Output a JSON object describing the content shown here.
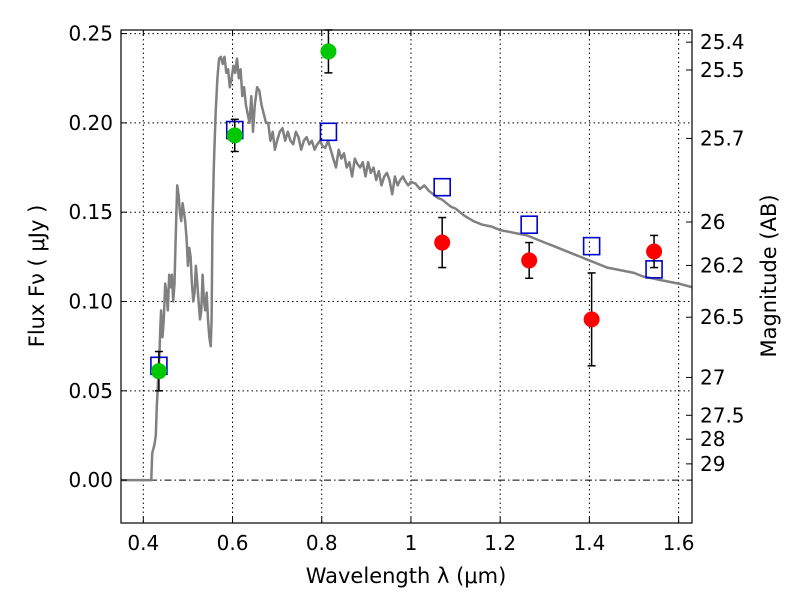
{
  "chart_data": {
    "type": "scatter",
    "title": "",
    "xlabel": "Wavelength  λ (μm)",
    "ylabel": "Flux  Fν  ( μJy )",
    "y2label": "Magnitude (AB)",
    "xlim": [
      0.35,
      1.63
    ],
    "ylim": [
      -0.024,
      0.252
    ],
    "x_ticks": [
      0.4,
      0.6,
      0.8,
      1.0,
      1.2,
      1.4,
      1.6
    ],
    "x_tick_labels": [
      "0.4",
      "0.6",
      "0.8",
      "1",
      "1.2",
      "1.4",
      "1.6"
    ],
    "y_ticks": [
      0.0,
      0.05,
      0.1,
      0.15,
      0.2,
      0.25
    ],
    "y_tick_labels": [
      "0.00",
      "0.05",
      "0.10",
      "0.15",
      "0.20",
      "0.25"
    ],
    "y2_ticks": [
      {
        "flux": 0.2452,
        "label": "25.4"
      },
      {
        "flux": 0.2296,
        "label": "25.5"
      },
      {
        "flux": 0.1913,
        "label": "25.7"
      },
      {
        "flux": 0.1445,
        "label": "26"
      },
      {
        "flux": 0.1202,
        "label": "26.2"
      },
      {
        "flux": 0.0912,
        "label": "26.5"
      },
      {
        "flux": 0.0575,
        "label": "27"
      },
      {
        "flux": 0.0363,
        "label": "27.5"
      },
      {
        "flux": 0.0229,
        "label": "28"
      },
      {
        "flux": 0.0091,
        "label": "29"
      }
    ],
    "grid": true,
    "colors": {
      "model_line": "#808080",
      "model_square": "#0000cc",
      "green_points": "#00c800",
      "red_points": "#ff0000",
      "errorbar": "#000000"
    },
    "series": [
      {
        "kind": "line",
        "color": "#808080",
        "x": [
          0.35,
          0.41,
          0.415,
          0.418,
          0.42,
          0.425,
          0.428,
          0.43,
          0.433,
          0.436,
          0.438,
          0.44,
          0.443,
          0.446,
          0.449,
          0.452,
          0.455,
          0.458,
          0.461,
          0.464,
          0.467,
          0.47,
          0.473,
          0.476,
          0.479,
          0.482,
          0.485,
          0.488,
          0.491,
          0.494,
          0.497,
          0.5,
          0.503,
          0.506,
          0.509,
          0.512,
          0.515,
          0.518,
          0.521,
          0.524,
          0.527,
          0.53,
          0.533,
          0.536,
          0.539,
          0.542,
          0.545,
          0.548,
          0.551,
          0.553,
          0.555,
          0.558,
          0.562,
          0.566,
          0.57,
          0.574,
          0.578,
          0.582,
          0.586,
          0.59,
          0.594,
          0.598,
          0.602,
          0.606,
          0.61,
          0.614,
          0.618,
          0.622,
          0.626,
          0.63,
          0.634,
          0.638,
          0.642,
          0.646,
          0.65,
          0.655,
          0.66,
          0.665,
          0.67,
          0.675,
          0.68,
          0.685,
          0.69,
          0.695,
          0.7,
          0.706,
          0.712,
          0.718,
          0.724,
          0.73,
          0.736,
          0.742,
          0.748,
          0.754,
          0.76,
          0.766,
          0.772,
          0.778,
          0.784,
          0.79,
          0.796,
          0.802,
          0.808,
          0.814,
          0.82,
          0.826,
          0.832,
          0.838,
          0.844,
          0.85,
          0.856,
          0.862,
          0.868,
          0.874,
          0.88,
          0.886,
          0.892,
          0.898,
          0.904,
          0.91,
          0.916,
          0.922,
          0.928,
          0.934,
          0.94,
          0.946,
          0.952,
          0.958,
          0.964,
          0.97,
          0.976,
          0.982,
          0.988,
          0.994,
          1.0,
          1.01,
          1.02,
          1.03,
          1.04,
          1.05,
          1.06,
          1.07,
          1.08,
          1.09,
          1.1,
          1.12,
          1.14,
          1.16,
          1.18,
          1.2,
          1.22,
          1.24,
          1.26,
          1.28,
          1.3,
          1.32,
          1.34,
          1.36,
          1.38,
          1.4,
          1.42,
          1.44,
          1.46,
          1.48,
          1.5,
          1.52,
          1.54,
          1.56,
          1.58,
          1.6,
          1.63
        ],
        "y": [
          0.0,
          0.0,
          0.0,
          0.0,
          0.015,
          0.02,
          0.025,
          0.04,
          0.055,
          0.07,
          0.085,
          0.095,
          0.08,
          0.09,
          0.11,
          0.105,
          0.095,
          0.115,
          0.108,
          0.115,
          0.1,
          0.11,
          0.14,
          0.165,
          0.16,
          0.15,
          0.145,
          0.155,
          0.15,
          0.145,
          0.135,
          0.12,
          0.13,
          0.125,
          0.11,
          0.1,
          0.105,
          0.12,
          0.11,
          0.1,
          0.09,
          0.095,
          0.115,
          0.1,
          0.095,
          0.105,
          0.09,
          0.08,
          0.075,
          0.09,
          0.14,
          0.175,
          0.205,
          0.225,
          0.236,
          0.237,
          0.233,
          0.237,
          0.228,
          0.23,
          0.22,
          0.225,
          0.232,
          0.228,
          0.236,
          0.225,
          0.23,
          0.215,
          0.22,
          0.21,
          0.205,
          0.2,
          0.215,
          0.195,
          0.21,
          0.22,
          0.218,
          0.21,
          0.205,
          0.2,
          0.2,
          0.19,
          0.195,
          0.185,
          0.19,
          0.195,
          0.197,
          0.19,
          0.195,
          0.19,
          0.188,
          0.195,
          0.192,
          0.185,
          0.19,
          0.192,
          0.188,
          0.19,
          0.185,
          0.188,
          0.19,
          0.187,
          0.186,
          0.19,
          0.185,
          0.18,
          0.175,
          0.185,
          0.18,
          0.183,
          0.175,
          0.178,
          0.17,
          0.18,
          0.177,
          0.175,
          0.178,
          0.17,
          0.178,
          0.172,
          0.175,
          0.168,
          0.173,
          0.165,
          0.17,
          0.172,
          0.168,
          0.16,
          0.17,
          0.165,
          0.168,
          0.17,
          0.167,
          0.165,
          0.167,
          0.166,
          0.163,
          0.165,
          0.162,
          0.16,
          0.158,
          0.157,
          0.155,
          0.153,
          0.152,
          0.148,
          0.145,
          0.143,
          0.142,
          0.14,
          0.139,
          0.138,
          0.137,
          0.135,
          0.133,
          0.131,
          0.129,
          0.127,
          0.125,
          0.123,
          0.121,
          0.119,
          0.118,
          0.117,
          0.116,
          0.114,
          0.113,
          0.112,
          0.111,
          0.11,
          0.108
        ]
      },
      {
        "kind": "square",
        "color": "#0000cc",
        "x": [
          0.435,
          0.605,
          0.815,
          1.07,
          1.265,
          1.405,
          1.545
        ],
        "y": [
          0.064,
          0.196,
          0.195,
          0.164,
          0.143,
          0.131,
          0.118
        ]
      },
      {
        "kind": "point",
        "color": "#00c800",
        "x": [
          0.435,
          0.605,
          0.815
        ],
        "y": [
          0.061,
          0.193,
          0.24
        ],
        "yerr": [
          0.011,
          0.009,
          0.012
        ]
      },
      {
        "kind": "point",
        "color": "#ff0000",
        "x": [
          1.07,
          1.265,
          1.405,
          1.545
        ],
        "y": [
          0.133,
          0.123,
          0.09,
          0.128
        ],
        "yerr": [
          0.014,
          0.01,
          0.026,
          0.009
        ]
      }
    ]
  }
}
